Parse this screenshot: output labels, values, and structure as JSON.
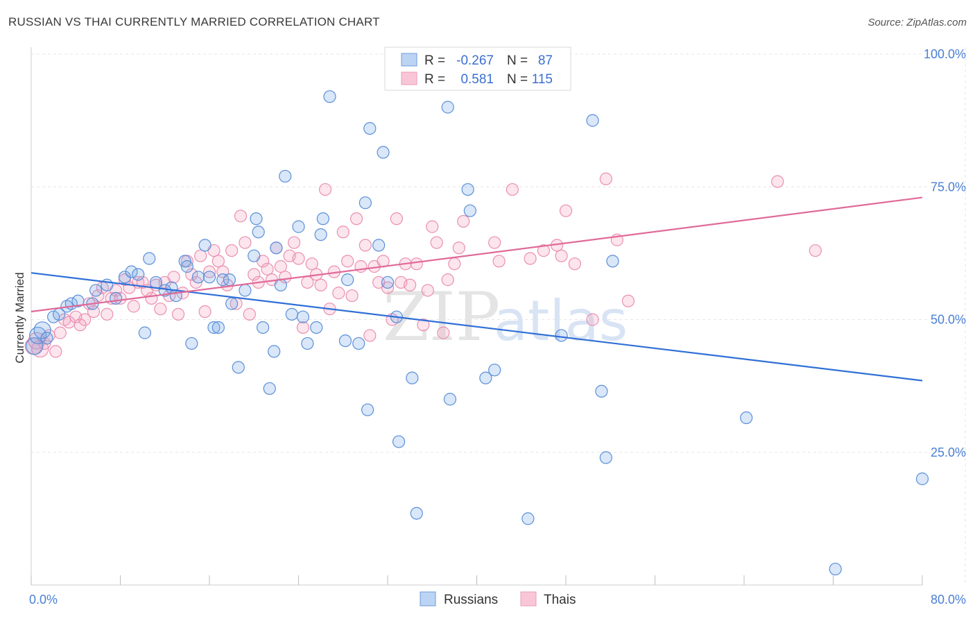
{
  "title": "RUSSIAN VS THAI CURRENTLY MARRIED CORRELATION CHART",
  "source": "Source: ZipAtlas.com",
  "watermark": {
    "zip": "ZIP",
    "atlas": "atlas"
  },
  "colors": {
    "russians_fill": "rgba(120,170,230,0.28)",
    "russians_stroke": "#5b8fd9",
    "russians_line": "#2f6fd6",
    "thais_fill": "rgba(245,160,190,0.28)",
    "thais_stroke": "#ea8fb0",
    "thais_line": "#e06a98",
    "tick_label": "#4a7fd4",
    "grid": "#e6e6e6"
  },
  "legend": {
    "rows": [
      {
        "r_label": "R =",
        "r_value": "-0.267",
        "n_label": "N =",
        "n_value": "87"
      },
      {
        "r_label": "R =",
        "r_value": "0.581",
        "n_label": "N =",
        "n_value": "115"
      }
    ]
  },
  "bottom_legend": [
    "Russians",
    "Thais"
  ],
  "chart_data": {
    "type": "scatter",
    "title": "RUSSIAN VS THAI CURRENTLY MARRIED CORRELATION CHART",
    "xlabel": "",
    "ylabel": "Currently Married",
    "xlim": [
      0,
      80
    ],
    "ylim": [
      0,
      100
    ],
    "x_tick_labels": [
      "0.0%",
      "80.0%"
    ],
    "y_ticks": [
      25,
      50,
      75,
      100
    ],
    "y_tick_labels": [
      "25.0%",
      "50.0%",
      "75.0%",
      "100.0%"
    ],
    "grid": true,
    "legend_position": "top-center",
    "series": [
      {
        "name": "Russians",
        "r": -0.267,
        "n": 87,
        "trend": {
          "x": [
            0,
            80
          ],
          "y": [
            58.8,
            38.5
          ]
        },
        "points": [
          [
            0.3,
            45
          ],
          [
            0.6,
            47
          ],
          [
            1.0,
            48
          ],
          [
            1.4,
            46.5
          ],
          [
            2.0,
            50.5
          ],
          [
            2.5,
            51
          ],
          [
            3.2,
            52.5
          ],
          [
            3.6,
            53
          ],
          [
            4.2,
            53.5
          ],
          [
            5.5,
            53
          ],
          [
            5.8,
            55.5
          ],
          [
            6.8,
            56.5
          ],
          [
            7.6,
            54
          ],
          [
            8.4,
            58
          ],
          [
            9.0,
            59
          ],
          [
            9.6,
            58.5
          ],
          [
            10.2,
            47.5
          ],
          [
            10.6,
            61.5
          ],
          [
            11.2,
            57
          ],
          [
            12.0,
            55.5
          ],
          [
            12.6,
            56
          ],
          [
            13.0,
            54.5
          ],
          [
            13.8,
            61
          ],
          [
            14.0,
            60
          ],
          [
            14.4,
            45.5
          ],
          [
            15.0,
            58
          ],
          [
            15.6,
            64
          ],
          [
            16.0,
            58
          ],
          [
            16.4,
            48.5
          ],
          [
            16.8,
            48.5
          ],
          [
            17.2,
            57.5
          ],
          [
            17.8,
            57.5
          ],
          [
            18.0,
            53
          ],
          [
            18.6,
            41
          ],
          [
            19.2,
            55.5
          ],
          [
            20.0,
            62
          ],
          [
            20.2,
            69
          ],
          [
            20.4,
            66.5
          ],
          [
            20.8,
            48.5
          ],
          [
            21.4,
            37
          ],
          [
            21.8,
            44
          ],
          [
            22.0,
            63.5
          ],
          [
            22.4,
            56.5
          ],
          [
            22.8,
            77
          ],
          [
            23.4,
            51
          ],
          [
            24.0,
            67.5
          ],
          [
            24.4,
            50.5
          ],
          [
            24.8,
            45.5
          ],
          [
            25.6,
            48.5
          ],
          [
            26.0,
            66
          ],
          [
            26.2,
            69
          ],
          [
            26.8,
            92
          ],
          [
            28.2,
            46
          ],
          [
            28.4,
            57.5
          ],
          [
            29.4,
            45.5
          ],
          [
            30.0,
            72
          ],
          [
            30.2,
            33
          ],
          [
            30.4,
            86
          ],
          [
            31.2,
            64
          ],
          [
            31.6,
            81.5
          ],
          [
            32.0,
            57
          ],
          [
            32.8,
            50.5
          ],
          [
            33.0,
            27
          ],
          [
            34.2,
            39
          ],
          [
            34.6,
            13.5
          ],
          [
            37.4,
            90
          ],
          [
            37.6,
            35
          ],
          [
            39.2,
            74.5
          ],
          [
            39.4,
            70.5
          ],
          [
            40.8,
            39
          ],
          [
            41.6,
            40.5
          ],
          [
            44.6,
            12.5
          ],
          [
            47.6,
            47
          ],
          [
            50.4,
            87.5
          ],
          [
            51.2,
            36.5
          ],
          [
            51.6,
            24
          ],
          [
            52.2,
            61
          ],
          [
            64.2,
            31.5
          ],
          [
            72.2,
            3
          ],
          [
            80.0,
            20
          ]
        ]
      },
      {
        "name": "Thais",
        "r": 0.581,
        "n": 115,
        "trend": {
          "x": [
            0,
            80
          ],
          "y": [
            51.5,
            73
          ]
        },
        "points": [
          [
            0.2,
            45
          ],
          [
            0.5,
            46
          ],
          [
            0.8,
            44.5
          ],
          [
            1.2,
            45.5
          ],
          [
            1.6,
            47
          ],
          [
            2.2,
            44
          ],
          [
            2.6,
            47.5
          ],
          [
            3.0,
            50
          ],
          [
            3.4,
            49.5
          ],
          [
            4.0,
            50.5
          ],
          [
            4.4,
            49
          ],
          [
            4.8,
            50
          ],
          [
            5.2,
            53
          ],
          [
            5.6,
            51.5
          ],
          [
            6.0,
            54.5
          ],
          [
            6.4,
            56
          ],
          [
            6.8,
            51
          ],
          [
            7.2,
            54
          ],
          [
            7.6,
            55.5
          ],
          [
            8.0,
            54
          ],
          [
            8.4,
            57.5
          ],
          [
            8.8,
            56
          ],
          [
            9.2,
            52.5
          ],
          [
            9.6,
            57
          ],
          [
            10.0,
            57
          ],
          [
            10.4,
            55.5
          ],
          [
            10.8,
            54
          ],
          [
            11.2,
            56.5
          ],
          [
            11.6,
            52
          ],
          [
            12.0,
            57
          ],
          [
            12.4,
            54.5
          ],
          [
            12.8,
            58
          ],
          [
            13.2,
            51
          ],
          [
            13.6,
            55
          ],
          [
            14.0,
            61
          ],
          [
            14.4,
            58.5
          ],
          [
            14.8,
            57
          ],
          [
            15.2,
            62
          ],
          [
            15.6,
            51.5
          ],
          [
            16.0,
            59
          ],
          [
            16.4,
            63
          ],
          [
            16.8,
            61
          ],
          [
            17.2,
            59
          ],
          [
            17.6,
            56.5
          ],
          [
            18.0,
            63
          ],
          [
            18.4,
            53
          ],
          [
            18.8,
            69.5
          ],
          [
            19.2,
            64.5
          ],
          [
            19.6,
            51
          ],
          [
            20.0,
            58.5
          ],
          [
            20.4,
            57
          ],
          [
            20.8,
            61
          ],
          [
            21.2,
            59.5
          ],
          [
            21.6,
            57.5
          ],
          [
            22.0,
            63.5
          ],
          [
            22.4,
            60
          ],
          [
            22.8,
            58
          ],
          [
            23.2,
            62
          ],
          [
            23.6,
            64.5
          ],
          [
            24.0,
            61.5
          ],
          [
            24.4,
            48.5
          ],
          [
            24.8,
            57
          ],
          [
            25.2,
            60.5
          ],
          [
            25.6,
            58.5
          ],
          [
            26.0,
            56.5
          ],
          [
            26.4,
            74.5
          ],
          [
            26.8,
            52
          ],
          [
            27.2,
            59
          ],
          [
            27.6,
            55
          ],
          [
            28.0,
            66.5
          ],
          [
            28.4,
            61
          ],
          [
            28.8,
            54.5
          ],
          [
            29.2,
            69
          ],
          [
            29.6,
            60
          ],
          [
            30.0,
            64
          ],
          [
            30.4,
            47
          ],
          [
            30.8,
            60
          ],
          [
            31.2,
            57
          ],
          [
            31.6,
            61
          ],
          [
            32.0,
            56
          ],
          [
            32.4,
            50
          ],
          [
            32.8,
            69
          ],
          [
            33.2,
            57
          ],
          [
            33.6,
            60.5
          ],
          [
            34.0,
            56.5
          ],
          [
            34.6,
            60.5
          ],
          [
            35.2,
            49
          ],
          [
            35.6,
            55.5
          ],
          [
            36.0,
            67.5
          ],
          [
            36.4,
            64.5
          ],
          [
            37.0,
            47.5
          ],
          [
            37.4,
            57.5
          ],
          [
            38.0,
            60.5
          ],
          [
            38.4,
            63.5
          ],
          [
            38.8,
            68.5
          ],
          [
            41.6,
            64.5
          ],
          [
            42.0,
            61
          ],
          [
            43.2,
            74.5
          ],
          [
            44.8,
            61.5
          ],
          [
            46.0,
            63
          ],
          [
            47.2,
            64
          ],
          [
            47.6,
            62
          ],
          [
            48.0,
            70.5
          ],
          [
            48.8,
            60.5
          ],
          [
            50.4,
            50
          ],
          [
            51.6,
            76.5
          ],
          [
            52.6,
            65
          ],
          [
            53.6,
            53.5
          ],
          [
            67.0,
            76
          ],
          [
            70.4,
            63
          ]
        ]
      }
    ]
  }
}
